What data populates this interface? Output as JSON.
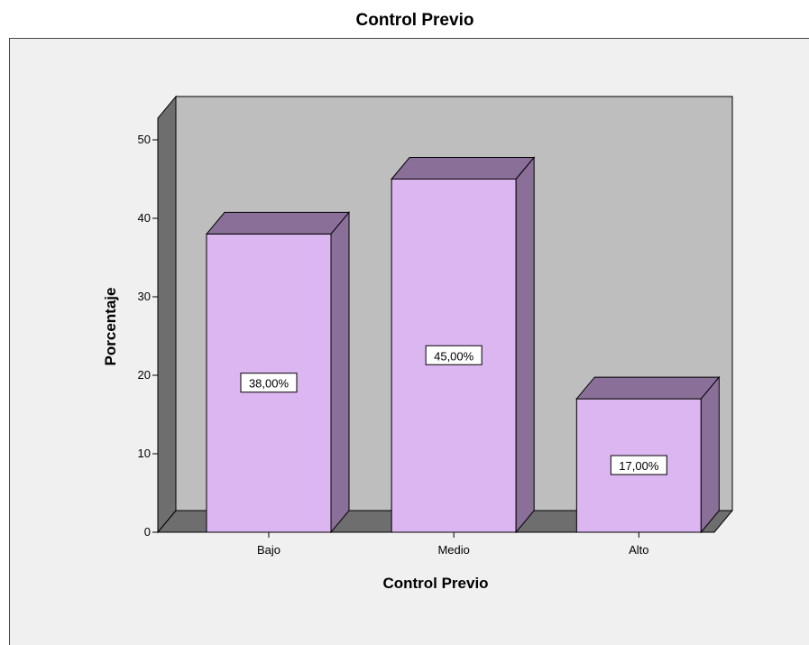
{
  "chart_data": {
    "type": "bar",
    "title": "Control Previo",
    "xlabel": "Control Previo",
    "ylabel": "Porcentaje",
    "categories": [
      "Bajo",
      "Medio",
      "Alto"
    ],
    "values": [
      38,
      45,
      17
    ],
    "data_labels": [
      "38,00%",
      "45,00%",
      "17,00%"
    ],
    "ylim": [
      0,
      55
    ],
    "yticks": [
      0,
      10,
      20,
      30,
      40,
      50
    ],
    "yticks_text": [
      "0",
      "10",
      "20",
      "30",
      "40",
      "50"
    ],
    "grid": false,
    "style": "3d",
    "colors": {
      "bar_front": "#dcb6f0",
      "bar_side": "#8a7099",
      "bar_top": "#8a7099",
      "back_wall": "#bebebe",
      "side_wall": "#6e6e6e",
      "floor": "#6e6e6e",
      "frame_bg": "#f0f0f0"
    }
  }
}
